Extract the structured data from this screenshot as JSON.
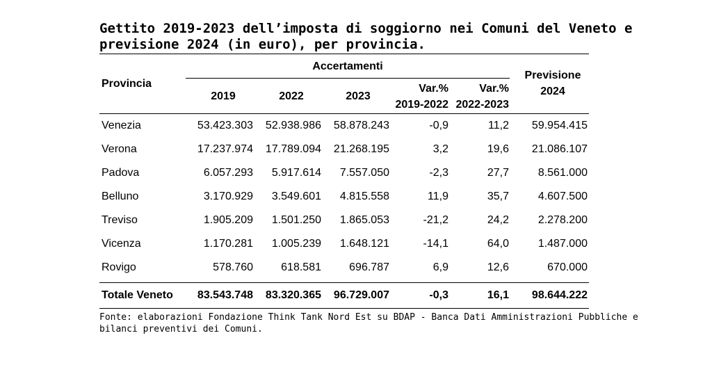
{
  "title": {
    "line1": "Gettito 2019-2023 dell’imposta di soggiorno nei Comuni del Veneto e",
    "line2": "previsione 2024 (in euro), per provincia."
  },
  "table": {
    "header": {
      "provincia": "Provincia",
      "accertamenti": "Accertamenti",
      "y2019": "2019",
      "y2022": "2022",
      "y2023": "2023",
      "var1_a": "Var.%",
      "var1_b": "2019-2022",
      "var2_a": "Var.%",
      "var2_b": "2022-2023",
      "prev_a": "Previsione",
      "prev_b": "2024"
    },
    "rows": [
      {
        "provincia": "Venezia",
        "y2019": "53.423.303",
        "y2022": "52.938.986",
        "y2023": "58.878.243",
        "var1": "-0,9",
        "var2": "11,2",
        "prev": "59.954.415"
      },
      {
        "provincia": "Verona",
        "y2019": "17.237.974",
        "y2022": "17.789.094",
        "y2023": "21.268.195",
        "var1": "3,2",
        "var2": "19,6",
        "prev": "21.086.107"
      },
      {
        "provincia": "Padova",
        "y2019": "6.057.293",
        "y2022": "5.917.614",
        "y2023": "7.557.050",
        "var1": "-2,3",
        "var2": "27,7",
        "prev": "8.561.000"
      },
      {
        "provincia": "Belluno",
        "y2019": "3.170.929",
        "y2022": "3.549.601",
        "y2023": "4.815.558",
        "var1": "11,9",
        "var2": "35,7",
        "prev": "4.607.500"
      },
      {
        "provincia": "Treviso",
        "y2019": "1.905.209",
        "y2022": "1.501.250",
        "y2023": "1.865.053",
        "var1": "-21,2",
        "var2": "24,2",
        "prev": "2.278.200"
      },
      {
        "provincia": "Vicenza",
        "y2019": "1.170.281",
        "y2022": "1.005.239",
        "y2023": "1.648.121",
        "var1": "-14,1",
        "var2": "64,0",
        "prev": "1.487.000"
      },
      {
        "provincia": "Rovigo",
        "y2019": "578.760",
        "y2022": "618.581",
        "y2023": "696.787",
        "var1": "6,9",
        "var2": "12,6",
        "prev": "670.000"
      }
    ],
    "total": {
      "provincia": "Totale Veneto",
      "y2019": "83.543.748",
      "y2022": "83.320.365",
      "y2023": "96.729.007",
      "var1": "-0,3",
      "var2": "16,1",
      "prev": "98.644.222"
    }
  },
  "source": {
    "line1": "Fonte: elaborazioni Fondazione Think Tank Nord Est su BDAP - Banca Dati Amministrazioni Pubbliche e",
    "line2": "bilanci preventivi dei Comuni."
  }
}
